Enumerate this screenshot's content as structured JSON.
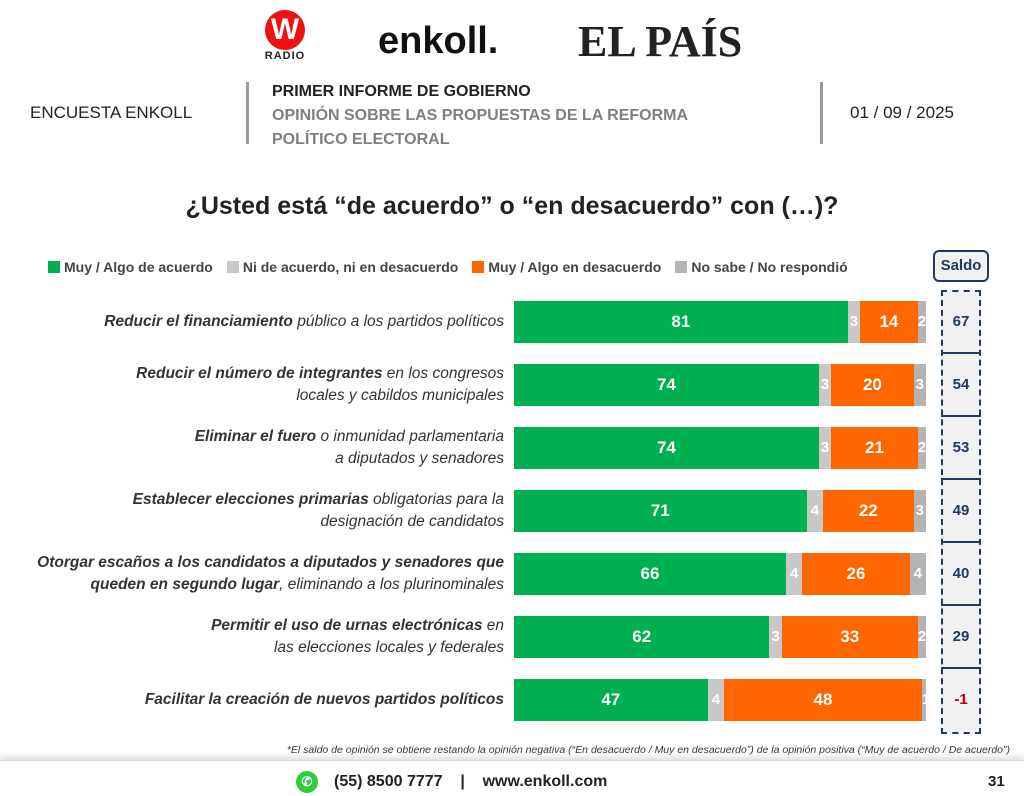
{
  "logos": {
    "w_radio": "W",
    "w_radio_sub": "RADIO",
    "enkoll": "enkoll.",
    "el_pais": "EL PAÍS"
  },
  "header": {
    "left": "ENCUESTA ENKOLL",
    "title": "PRIMER INFORME DE GOBIERNO",
    "subtitle1": "OPINIÓN SOBRE LAS PROPUESTAS DE LA REFORMA",
    "subtitle2": "POLÍTICO ELECTORAL",
    "date": "01 / 09 / 2025"
  },
  "chart_data": {
    "type": "bar",
    "stacked": true,
    "orientation": "horizontal",
    "title": "¿Usted está “de acuerdo” o “en desacuerdo” con (…)?",
    "legend": [
      "Muy / Algo de acuerdo",
      "Ni de acuerdo, ni en desacuerdo",
      "Muy / Algo en desacuerdo",
      "No sabe / No respondió"
    ],
    "colors": [
      "#00b050",
      "#c8c8c8",
      "#ff6600",
      "#b4b4b4"
    ],
    "saldo_label": "Saldo",
    "categories": [
      [
        [
          {
            "t": "Reducir el financiamiento",
            "b": true
          },
          {
            "t": " público a los partidos políticos"
          }
        ]
      ],
      [
        [
          {
            "t": "Reducir el número de integrantes",
            "b": true
          },
          {
            "t": " en los congresos"
          }
        ],
        [
          {
            "t": "locales y cabildos municipales"
          }
        ]
      ],
      [
        [
          {
            "t": "Eliminar el fuero",
            "b": true
          },
          {
            "t": " o inmunidad parlamentaria"
          }
        ],
        [
          {
            "t": "a diputados y senadores"
          }
        ]
      ],
      [
        [
          {
            "t": "Establecer elecciones primarias",
            "b": true
          },
          {
            "t": " obligatorias para la"
          }
        ],
        [
          {
            "t": "designación de candidatos"
          }
        ]
      ],
      [
        [
          {
            "t": "Otorgar escaños a los candidatos a diputados y senadores que",
            "b": true
          }
        ],
        [
          {
            "t": "queden en segundo lugar",
            "b": true
          },
          {
            "t": ", eliminando a los plurinominales"
          }
        ]
      ],
      [
        [
          {
            "t": "Permitir el uso de urnas electrónicas",
            "b": true
          },
          {
            "t": " en"
          }
        ],
        [
          {
            "t": "las elecciones locales y federales"
          }
        ]
      ],
      [
        [
          {
            "t": "Facilitar la creación de nuevos partidos políticos",
            "b": true
          }
        ]
      ]
    ],
    "series": [
      {
        "name": "Muy / Algo de acuerdo",
        "values": [
          81,
          74,
          74,
          71,
          66,
          62,
          47
        ]
      },
      {
        "name": "Ni de acuerdo, ni en desacuerdo",
        "values": [
          3,
          3,
          3,
          4,
          4,
          3,
          4
        ]
      },
      {
        "name": "Muy / Algo en desacuerdo",
        "values": [
          14,
          20,
          21,
          22,
          26,
          33,
          48
        ]
      },
      {
        "name": "No sabe / No respondió",
        "values": [
          2,
          3,
          2,
          3,
          4,
          2,
          1
        ]
      }
    ],
    "saldo": [
      67,
      54,
      53,
      49,
      40,
      29,
      -1
    ],
    "xlim": [
      0,
      100
    ]
  },
  "footnote": "*El saldo de opinión se obtiene restando la opinión negativa (“En desacuerdo / Muy en desacuerdo”) de la opinión positiva (“Muy de acuerdo / De acuerdo”)",
  "footer": {
    "phone": "(55) 8500 7777",
    "sep": "|",
    "web": "www.enkoll.com",
    "page": "31"
  }
}
